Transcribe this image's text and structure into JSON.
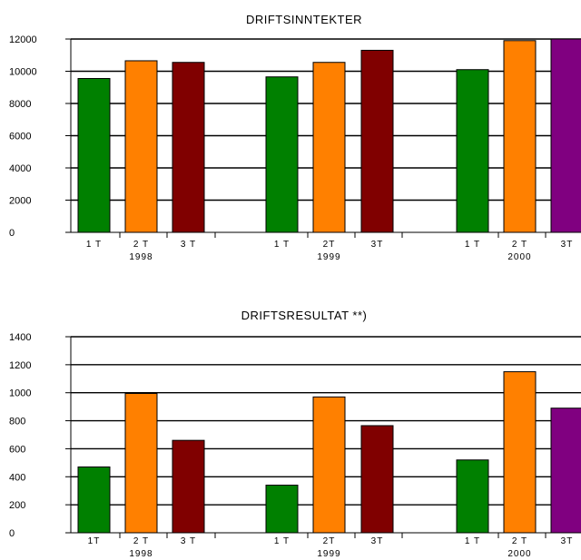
{
  "chart_data": [
    {
      "type": "bar",
      "title": "DRIFTSINNTEKTER",
      "xlabel": "",
      "ylabel": "",
      "ylim": [
        0,
        12000
      ],
      "yticks": [
        "0",
        "2000",
        "4000",
        "6000",
        "8000",
        "10000",
        "12000"
      ],
      "grid": true,
      "groups": [
        {
          "year": "1998",
          "categories": [
            "1 T",
            "2 T",
            "3 T"
          ],
          "values": [
            9550,
            10650,
            10550
          ]
        },
        {
          "year": "1999",
          "categories": [
            "1 T",
            "2T",
            "3T"
          ],
          "values": [
            9650,
            10550,
            11300
          ]
        },
        {
          "year": "2000",
          "categories": [
            "1 T",
            "2 T",
            "3T"
          ],
          "values": [
            10100,
            11900,
            12000
          ]
        }
      ],
      "colors": {
        "1T": "#008000",
        "2T": "#ff8000",
        "3T": "#800000",
        "3T_2000": "#800080"
      }
    },
    {
      "type": "bar",
      "title": "DRIFTSRESULTAT **)",
      "xlabel": "",
      "ylabel": "",
      "ylim": [
        0,
        1400
      ],
      "yticks": [
        "0",
        "200",
        "400",
        "600",
        "800",
        "1000",
        "1200",
        "1400"
      ],
      "grid": true,
      "groups": [
        {
          "year": "1998",
          "categories": [
            "1T",
            "2 T",
            "3 T"
          ],
          "values": [
            470,
            995,
            660
          ]
        },
        {
          "year": "1999",
          "categories": [
            "1 T",
            "2T",
            "3T"
          ],
          "values": [
            340,
            970,
            765
          ]
        },
        {
          "year": "2000",
          "categories": [
            "1 T",
            "2 T",
            "3T"
          ],
          "values": [
            520,
            1150,
            890
          ]
        }
      ],
      "colors": {
        "1T": "#008000",
        "2T": "#ff8000",
        "3T": "#800000",
        "3T_2000": "#800080"
      }
    }
  ]
}
